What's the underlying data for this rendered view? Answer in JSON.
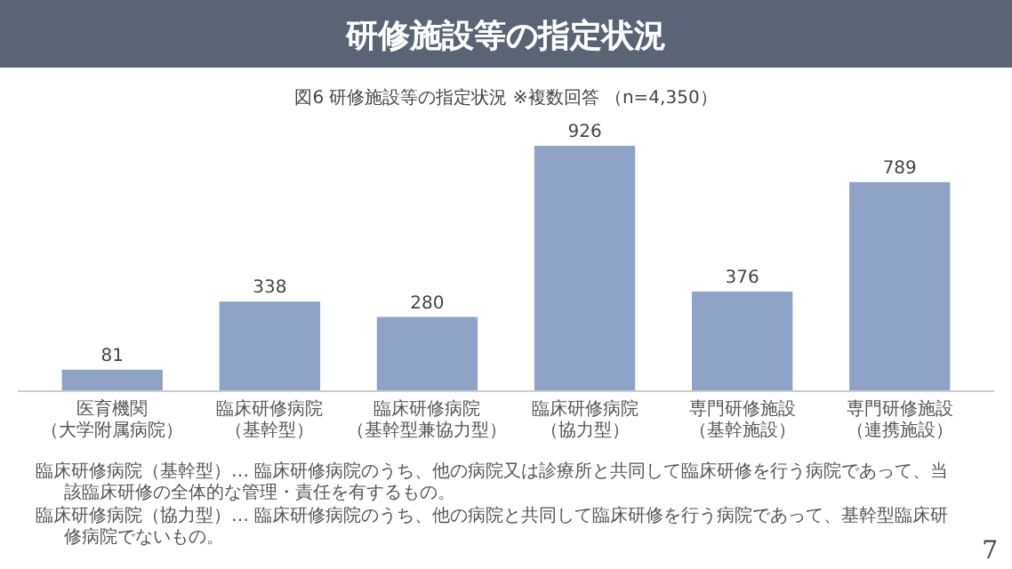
{
  "chart_data": {
    "type": "bar",
    "title": "研修施設等の指定状況",
    "subtitle": "図6  研修施設等の指定状況  ※複数回答  （n=4,350）",
    "categories": [
      "医育機関（大学附属病院）",
      "臨床研修病院（基幹型）",
      "臨床研修病院（基幹型兼協力型）",
      "臨床研修病院（協力型）",
      "専門研修施設（基幹施設）",
      "専門研修施設（連携施設）"
    ],
    "values": [
      81,
      338,
      280,
      926,
      376,
      789
    ],
    "color": "#8fa3c8",
    "data_labels": true,
    "annotations": [
      "臨床研修病院（基幹型）…  臨床研修病院のうち、他の病院又は診療所と共同して臨床研修を行う病院であって、当該臨床研修の全体的な管理・責任を有するもの。",
      "臨床研修病院（協力型）…  臨床研修病院のうち、他の病院と共同して臨床研修を行う病院であって、基幹型臨床研修病院でないもの。",
      "7"
    ]
  }
}
